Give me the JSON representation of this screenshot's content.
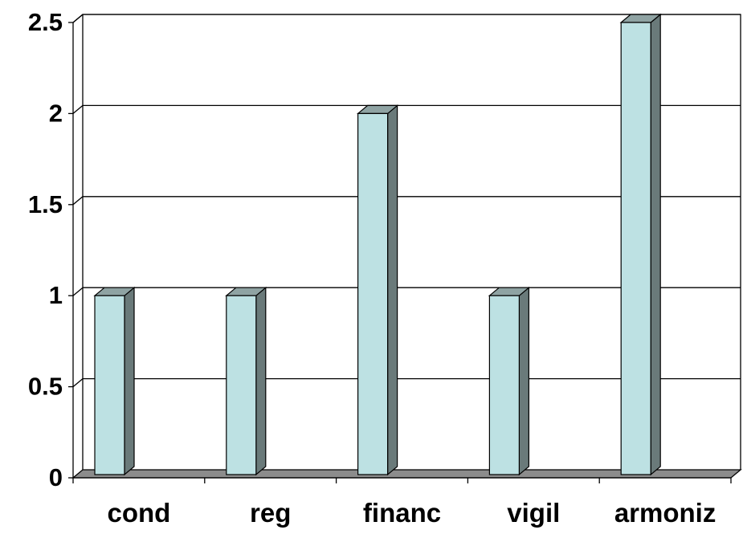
{
  "chart_data": {
    "type": "bar",
    "categories": [
      "cond",
      "reg",
      "financ",
      "vigil",
      "armoniz"
    ],
    "values": [
      1,
      1,
      2,
      1,
      2.5
    ],
    "ylim": [
      0,
      2.5
    ],
    "yticks": [
      "0",
      "0.5",
      "1",
      "1.5",
      "2",
      "2.5"
    ],
    "title": "",
    "xlabel": "",
    "ylabel": "",
    "grid": true,
    "legend": "none",
    "colors": {
      "bar_front": "#bde1e3",
      "bar_side": "#6a7a7a",
      "bar_top": "#8fa3a3",
      "floor": "#8c8c8c",
      "gridline": "#000000"
    }
  }
}
